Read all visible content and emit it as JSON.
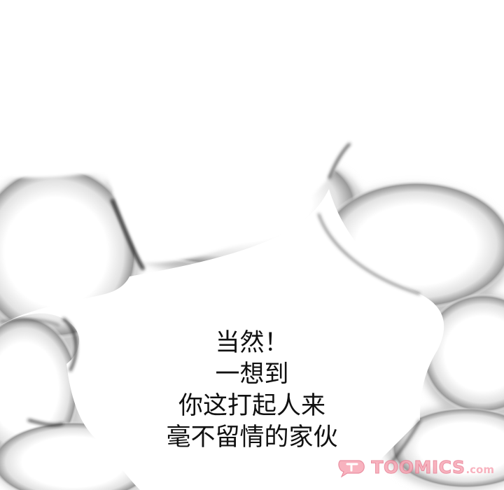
{
  "dialogue": {
    "lines": [
      "当然！",
      "一想到",
      "你这打起人来",
      "毫不留情的家伙"
    ]
  },
  "watermark": {
    "brand": "TOOMICS",
    "suffix": ".com",
    "color": "#f7a6b4"
  }
}
